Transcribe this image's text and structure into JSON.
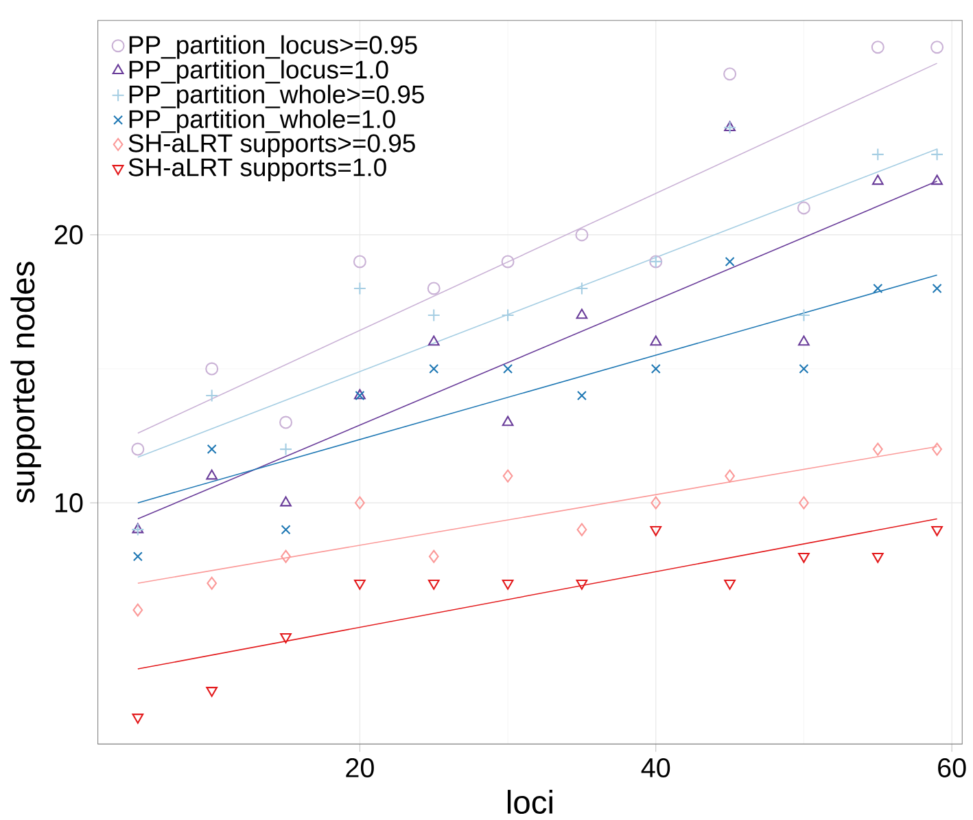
{
  "chart_data": {
    "type": "scatter",
    "xlabel": "loci",
    "ylabel": "supported nodes",
    "xlim": [
      2.3,
      60.7
    ],
    "ylim": [
      1,
      28
    ],
    "xticks": [
      20,
      40,
      60
    ],
    "yticks": [
      10,
      20
    ],
    "grid": true,
    "legend": "top left",
    "x": [
      5,
      10,
      15,
      20,
      25,
      30,
      35,
      40,
      45,
      50,
      55,
      59
    ],
    "series": [
      {
        "name": "PP_partition_locus>=0.95",
        "color": "#cab2d6",
        "marker": "circle",
        "values": [
          12,
          15,
          13,
          19,
          18,
          19,
          20,
          19,
          26,
          21,
          27,
          27
        ]
      },
      {
        "name": "PP_partition_locus=1.0",
        "color": "#6a3d9a",
        "marker": "triangle",
        "values": [
          9,
          11,
          10,
          14,
          16,
          13,
          17,
          16,
          24,
          16,
          22,
          22
        ]
      },
      {
        "name": "PP_partition_whole>=0.95",
        "color": "#a6cee3",
        "marker": "plus",
        "values": [
          9,
          14,
          12,
          18,
          17,
          17,
          18,
          19,
          24,
          17,
          23,
          23
        ]
      },
      {
        "name": "PP_partition_whole=1.0",
        "color": "#1f78b4",
        "marker": "cross",
        "values": [
          8,
          12,
          9,
          14,
          15,
          15,
          14,
          15,
          19,
          15,
          18,
          18
        ]
      },
      {
        "name": "SH-aLRT supports>=0.95",
        "color": "#fb9a99",
        "marker": "diamond",
        "values": [
          6,
          7,
          8,
          10,
          8,
          11,
          9,
          10,
          11,
          10,
          12,
          12
        ]
      },
      {
        "name": "SH-aLRT supports=1.0",
        "color": "#e31a1c",
        "marker": "triangle down",
        "values": [
          2,
          3,
          5,
          7,
          7,
          7,
          7,
          9,
          7,
          8,
          8,
          9
        ]
      },
      {
        "type": "line",
        "color": "#cab2d6",
        "values": [
          12.6,
          null,
          null,
          null,
          null,
          null,
          null,
          null,
          null,
          null,
          null,
          26.4
        ]
      },
      {
        "type": "line",
        "color": "#6a3d9a",
        "values": [
          9.4,
          null,
          null,
          null,
          null,
          null,
          null,
          null,
          null,
          null,
          null,
          22.0
        ]
      },
      {
        "type": "line",
        "color": "#a6cee3",
        "values": [
          11.7,
          null,
          null,
          null,
          null,
          null,
          null,
          null,
          null,
          null,
          null,
          23.2
        ]
      },
      {
        "type": "line",
        "color": "#1f78b4",
        "values": [
          10.0,
          null,
          null,
          null,
          null,
          null,
          null,
          null,
          null,
          null,
          null,
          18.5
        ]
      },
      {
        "type": "line",
        "color": "#fb9a99",
        "values": [
          7.0,
          null,
          null,
          null,
          null,
          null,
          null,
          null,
          null,
          null,
          null,
          12.1
        ]
      },
      {
        "type": "line",
        "color": "#e31a1c",
        "values": [
          3.8,
          null,
          null,
          null,
          null,
          null,
          null,
          null,
          null,
          null,
          null,
          9.4
        ]
      }
    ]
  }
}
